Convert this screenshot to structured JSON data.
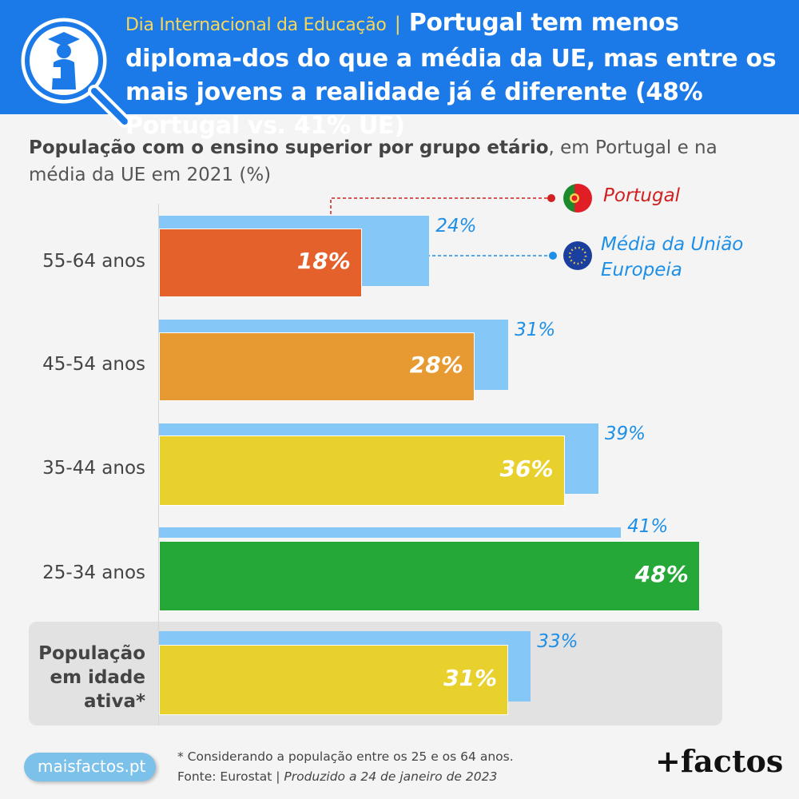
{
  "header": {
    "kicker": "Dia Internacional da Educação",
    "separator": "|",
    "headline": "Portugal tem menos diploma-dos do que a média da UE, mas entre os mais jovens a realidade já é diferente (48% Portugal vs. 41% UE)"
  },
  "subtitle": {
    "bold": "População com o ensino superior por grupo etário",
    "rest": ", em Portugal e na média da UE em 2021 (%)"
  },
  "legend": {
    "portugal": "Portugal",
    "eu": "Média da União Europeia"
  },
  "footer": {
    "note": "* Considerando a população entre os 25 e os 64 anos.",
    "source": "Fonte: Eurostat |",
    "produced": "Produzido a 24 de janeiro de 2023",
    "site": "maisfactos.pt",
    "brand": "+factos"
  },
  "colors": {
    "header_bg": "#1b7ae8",
    "eu_bar": "#85c8f8",
    "portugal": "#d0201f",
    "eu_label": "#1e8fe6"
  },
  "chart_data": {
    "type": "bar",
    "orientation": "horizontal",
    "title": "População com o ensino superior por grupo etário, em Portugal e na média da UE em 2021 (%)",
    "categories": [
      "55-64 anos",
      "45-54 anos",
      "35-44 anos",
      "25-34 anos",
      "População em idade ativa*"
    ],
    "series": [
      {
        "name": "Portugal",
        "values": [
          18,
          28,
          36,
          48,
          31
        ],
        "value_labels": [
          "18%",
          "28%",
          "36%",
          "48%",
          "31%"
        ],
        "colors": [
          "#e4612c",
          "#e79a32",
          "#e8d12c",
          "#26a839",
          "#e8d12c"
        ]
      },
      {
        "name": "Média da União Europeia",
        "values": [
          24,
          31,
          39,
          41,
          33
        ],
        "value_labels": [
          "24%",
          "31%",
          "39%",
          "41%",
          "33%"
        ],
        "color": "#85c8f8"
      }
    ],
    "xlim": [
      0,
      50
    ],
    "grid": false,
    "legend_position": "top-right"
  }
}
